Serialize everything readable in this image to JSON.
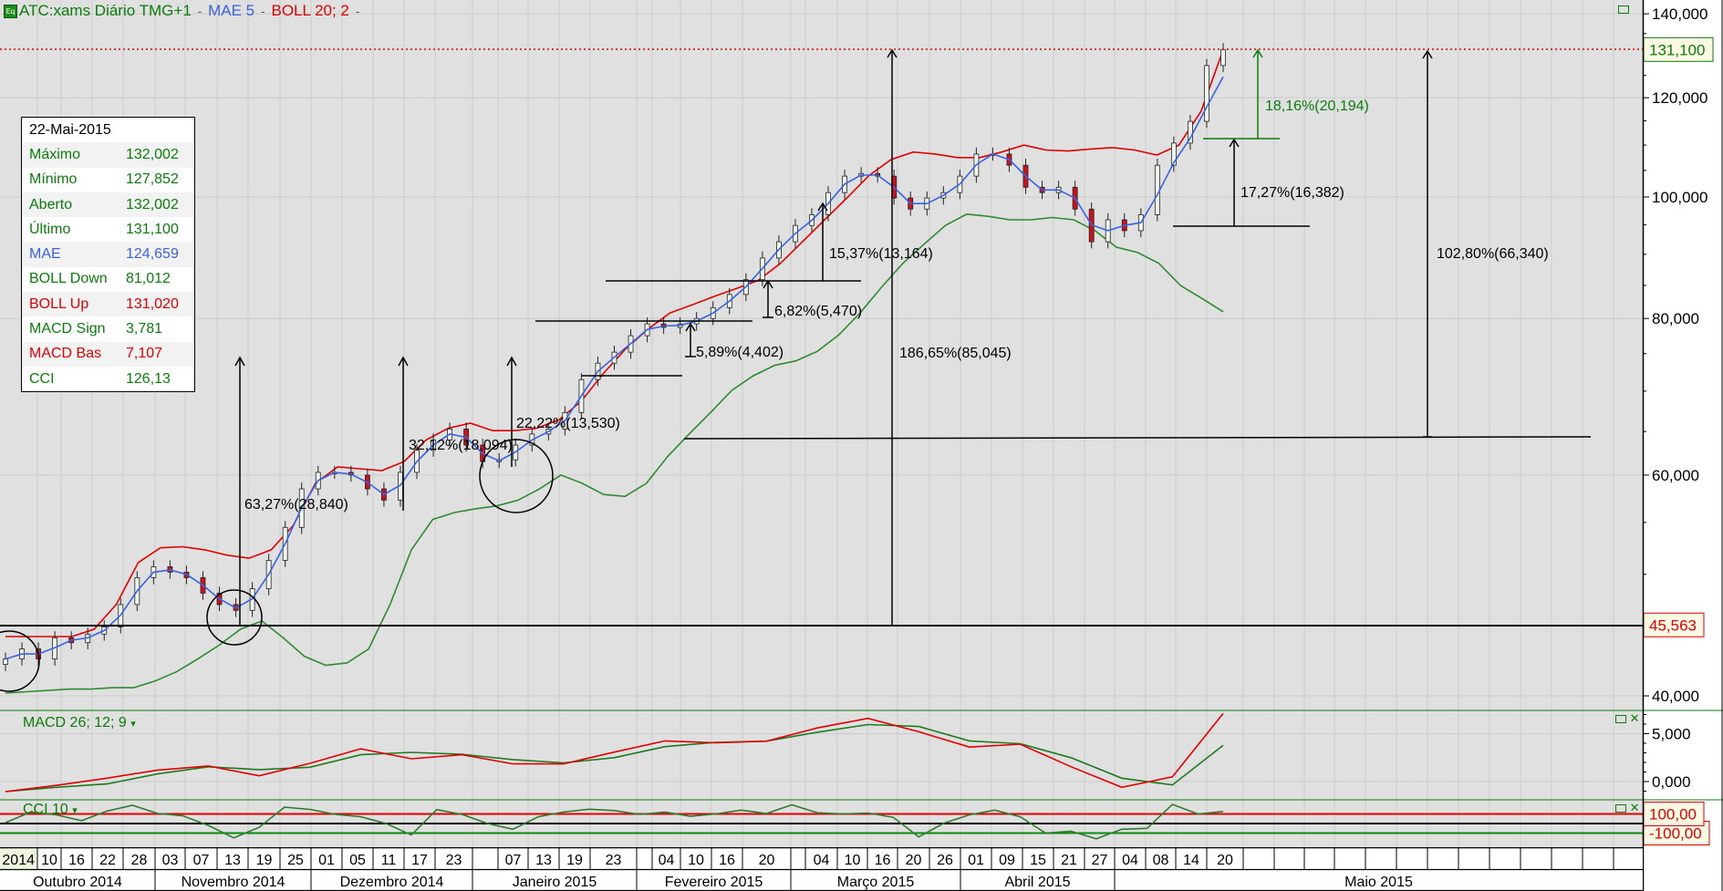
{
  "header": {
    "symbol": "ATC:xams Diário TMG+1",
    "indicator_mae": "MAE 5",
    "indicator_boll": "BOLL 20; 2",
    "dash": "-",
    "eq_icon": "Eq"
  },
  "info": {
    "date": "22-Mai-2015",
    "rows": [
      {
        "label": "Máximo",
        "value": "132,002",
        "color": "#0a7d0a"
      },
      {
        "label": "Mínimo",
        "value": "127,852",
        "color": "#0a7d0a"
      },
      {
        "label": "Aberto",
        "value": "132,002",
        "color": "#0a7d0a"
      },
      {
        "label": "Último",
        "value": "131,100",
        "color": "#0a7d0a"
      },
      {
        "label": "MAE",
        "value": "124,659",
        "color": "#3a62e0"
      },
      {
        "label": "BOLL Down",
        "value": "81,012",
        "color": "#0a7d0a"
      },
      {
        "label": "BOLL Up",
        "value": "131,020",
        "color": "#e00000"
      },
      {
        "label": "MACD Sign",
        "value": "3,781",
        "color": "#0a7d0a"
      },
      {
        "label": "MACD Bas",
        "value": "7,107",
        "color": "#e00000"
      },
      {
        "label": "CCI",
        "value": "126,13",
        "color": "#0a7d0a"
      }
    ]
  },
  "panels": {
    "macd_label": "MACD 26; 12; 9",
    "cci_label": "CCI 10",
    "macd_ticks": [
      {
        "v": 5,
        "label": "5,000"
      },
      {
        "v": 0,
        "label": "0,000"
      }
    ],
    "cci_levels": {
      "upper": 100,
      "zero": 0,
      "lower": -100
    },
    "cci_upper_label": "100,00",
    "cci_lower_label": "-100,00"
  },
  "markers": {
    "last_price": {
      "value": 131.1,
      "label": "131,100"
    },
    "support": {
      "value": 45.563,
      "label": "45,563"
    }
  },
  "annotations": {
    "a1": "63,27%(28,840)",
    "a2": "32,12%(18,094)",
    "a3": "22,22%(13,530)",
    "a4": "5,89%(4,402)",
    "a5": "6,82%(5,470)",
    "a6": "15,37%(13,164)",
    "a7": "186,65%(85,045)",
    "a8": "102,80%(66,340)",
    "a9": "17,27%(16,382)",
    "a10": "18,16%(20,194)"
  },
  "colors": {
    "background": "#e0e0e0",
    "grid": "#cbcbcb",
    "green": "#0a7d0a",
    "blue": "#3a62e0",
    "red": "#e00000",
    "band_down": "#2e8b2e"
  },
  "chart_data": {
    "type": "candlestick",
    "scale": "log",
    "ylim": [
      40,
      140
    ],
    "y_ticks": [
      {
        "v": 140,
        "label": "140,000"
      },
      {
        "v": 120,
        "label": "120,000"
      },
      {
        "v": 100,
        "label": "100,000"
      },
      {
        "v": 80,
        "label": "80,000"
      },
      {
        "v": 60,
        "label": "60,000"
      },
      {
        "v": 40,
        "label": "40,000"
      }
    ],
    "x_day_labels": [
      "2014",
      "10",
      "16",
      "22",
      "28",
      "03",
      "07",
      "13",
      "19",
      "25",
      "01",
      "05",
      "11",
      "17",
      "23",
      "",
      "07",
      "13",
      "19",
      "23",
      "",
      "04",
      "10",
      "16",
      "20",
      "",
      "04",
      "10",
      "16",
      "20",
      "26",
      "01",
      "09",
      "15",
      "21",
      "27",
      "04",
      "08",
      "14",
      "20",
      "",
      "",
      "",
      "",
      "",
      "",
      "",
      "",
      "",
      "",
      "",
      "",
      ""
    ],
    "x_month_labels": [
      "Outubro 2014",
      "Novembro 2014",
      "Dezembro 2014",
      "Janeiro 2015",
      "Fevereiro 2015",
      "Março 2015",
      "Abril 2015",
      "Maio 2015"
    ],
    "close": [
      42.8,
      43.6,
      42.8,
      44.5,
      44.1,
      44.8,
      45.4,
      47.3,
      49.7,
      50.7,
      50.2,
      49.7,
      48.3,
      47.3,
      46.8,
      48.7,
      51.3,
      54.5,
      58.5,
      60.3,
      60.3,
      60.0,
      58.5,
      57.3,
      60.3,
      62.8,
      64.0,
      65.3,
      63.4,
      61.5,
      61.7,
      63.4,
      64.7,
      65.3,
      67.3,
      71.5,
      73.7,
      75.2,
      77.5,
      79.2,
      78.7,
      79.2,
      80.0,
      81.6,
      83.6,
      85.9,
      89.4,
      92.1,
      94.9,
      96.8,
      100.8,
      103.9,
      104.4,
      103.9,
      99.8,
      97.8,
      99.8,
      100.8,
      103.9,
      108.2,
      108.2,
      106.0,
      101.8,
      100.8,
      101.8,
      97.8,
      92.1,
      95.9,
      94.0,
      96.8,
      106.0,
      110.4,
      114.9,
      127.3,
      131.1
    ],
    "mae5": [
      42.8,
      43.2,
      43.2,
      43.7,
      44.3,
      44.5,
      45.1,
      46.4,
      48.5,
      50.2,
      50.4,
      50.0,
      49.0,
      47.8,
      47.0,
      47.8,
      50.0,
      52.9,
      56.5,
      59.4,
      60.3,
      60.1,
      59.2,
      57.9,
      58.9,
      61.5,
      63.4,
      64.7,
      64.3,
      62.4,
      61.6,
      62.6,
      64.0,
      65.0,
      66.3,
      69.4,
      72.6,
      74.5,
      76.4,
      78.4,
      78.9,
      79.0,
      79.6,
      80.8,
      82.6,
      84.8,
      87.7,
      90.8,
      93.5,
      95.8,
      98.8,
      102.4,
      104.1,
      104.1,
      101.8,
      98.8,
      98.8,
      100.3,
      102.4,
      106.1,
      108.2,
      107.1,
      103.9,
      101.3,
      101.3,
      99.8,
      95.0,
      94.0,
      94.9,
      95.4,
      100.4,
      106.5,
      111.4,
      118.0,
      124.7
    ],
    "boll_up": [
      44.6,
      44.6,
      44.6,
      44.6,
      45.2,
      47.3,
      51.1,
      52.5,
      52.6,
      52.3,
      51.8,
      51.5,
      52.3,
      54.7,
      59.1,
      60.9,
      60.7,
      60.5,
      61.5,
      64.0,
      65.4,
      66.0,
      65.1,
      65.1,
      65.4,
      66.4,
      68.7,
      72.3,
      75.6,
      78.4,
      80.8,
      82.0,
      83.3,
      84.5,
      85.8,
      88.5,
      92.1,
      95.9,
      99.8,
      104.0,
      107.1,
      108.6,
      108.2,
      107.5,
      107.5,
      108.6,
      110.0,
      109.0,
      108.8,
      109.2,
      109.5,
      109.0,
      108.0,
      110.0,
      117.0,
      131.0
    ],
    "boll_down": [
      40.2,
      40.3,
      40.4,
      40.5,
      40.5,
      40.6,
      40.6,
      41.1,
      41.8,
      42.8,
      43.9,
      45.2,
      45.9,
      44.5,
      43.0,
      42.3,
      42.5,
      43.6,
      47.3,
      52.3,
      55.3,
      56.0,
      56.4,
      56.7,
      57.3,
      58.5,
      60.0,
      59.1,
      57.9,
      57.7,
      59.1,
      62.1,
      64.7,
      67.3,
      70.1,
      72.0,
      73.4,
      74.0,
      75.3,
      77.6,
      80.8,
      84.7,
      88.5,
      91.7,
      94.9,
      96.9,
      96.5,
      95.9,
      95.9,
      96.3,
      95.9,
      94.0,
      91.2,
      90.3,
      88.5,
      85.0,
      83.0,
      81.0
    ],
    "macd_base": [
      -1.05,
      -0.4,
      0.35,
      1.2,
      1.63,
      0.6,
      1.9,
      3.42,
      2.38,
      2.8,
      1.85,
      1.85,
      3.08,
      4.25,
      4.05,
      4.22,
      5.6,
      6.6,
      5.2,
      3.6,
      3.9,
      1.55,
      -0.6,
      0.5,
      7.107
    ],
    "macd_signal": [
      -1.05,
      -0.6,
      -0.25,
      0.8,
      1.54,
      1.25,
      1.5,
      2.8,
      3.05,
      2.85,
      2.3,
      1.95,
      2.5,
      3.65,
      4.1,
      4.22,
      5.15,
      5.95,
      5.75,
      4.25,
      3.95,
      2.5,
      0.35,
      -0.35,
      3.781
    ],
    "cci": [
      10,
      120,
      90,
      30,
      130,
      190,
      105,
      80,
      -20,
      -150,
      -40,
      170,
      148,
      95,
      70,
      0,
      -120,
      145,
      95,
      0,
      -60,
      70,
      120,
      150,
      135,
      95,
      120,
      75,
      100,
      140,
      105,
      195,
      112,
      100,
      110,
      65,
      -140,
      5,
      90,
      140,
      70,
      -100,
      -80,
      -160,
      -60,
      -50,
      200,
      100,
      126.13
    ]
  }
}
